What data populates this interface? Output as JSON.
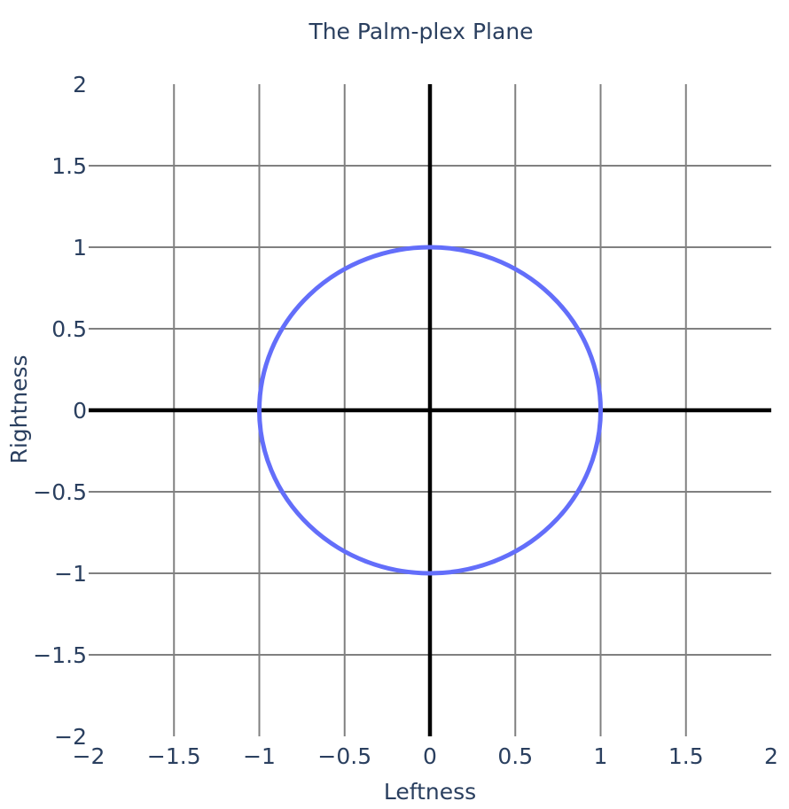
{
  "chart_data": {
    "type": "line",
    "title": "The Palm-plex Plane",
    "xlabel": "Leftness",
    "ylabel": "Rightness",
    "xlim": [
      -2,
      2
    ],
    "ylim": [
      -2,
      2
    ],
    "x_ticks": [
      {
        "value": -2,
        "label": "−2"
      },
      {
        "value": -1.5,
        "label": "−1.5"
      },
      {
        "value": -1,
        "label": "−1"
      },
      {
        "value": -0.5,
        "label": "−0.5"
      },
      {
        "value": 0,
        "label": "0"
      },
      {
        "value": 0.5,
        "label": "0.5"
      },
      {
        "value": 1,
        "label": "1"
      },
      {
        "value": 1.5,
        "label": "1.5"
      },
      {
        "value": 2,
        "label": "2"
      }
    ],
    "y_ticks": [
      {
        "value": -2,
        "label": "−2"
      },
      {
        "value": -1.5,
        "label": "−1.5"
      },
      {
        "value": -1,
        "label": "−1"
      },
      {
        "value": -0.5,
        "label": "−0.5"
      },
      {
        "value": 0,
        "label": "0"
      },
      {
        "value": 0.5,
        "label": "0.5"
      },
      {
        "value": 1,
        "label": "1"
      },
      {
        "value": 1.5,
        "label": "1.5"
      },
      {
        "value": 2,
        "label": "2"
      }
    ],
    "grid": true,
    "zero_lines": true,
    "series": [
      {
        "color": "#636efa",
        "shape": "unit circle",
        "x": [
          1,
          0.866,
          0.5,
          0,
          -0.5,
          -0.866,
          -1,
          -0.866,
          -0.5,
          0,
          0.5,
          0.866,
          1
        ],
        "y": [
          0,
          0.5,
          0.866,
          1,
          0.866,
          0.5,
          0,
          -0.5,
          -0.866,
          -1,
          -0.866,
          -0.5,
          0
        ]
      }
    ]
  }
}
